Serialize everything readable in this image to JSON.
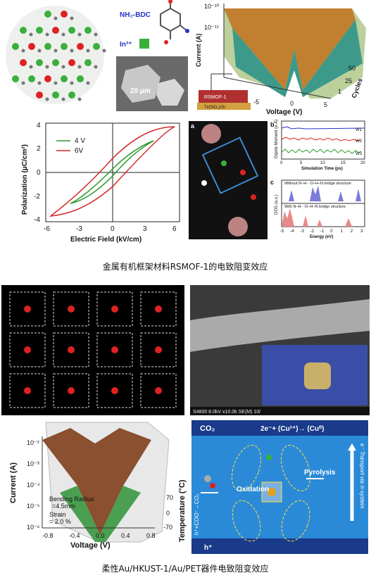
{
  "top": {
    "mof": {
      "ligand": "NH₂-BDC",
      "ion": "In³⁺",
      "scale": "20 μm"
    },
    "surface": {
      "y_ticks": [
        "10⁻¹⁰",
        "10⁻¹¹"
      ],
      "y_label": "Current (A)",
      "z_label": "Cycles",
      "z_ticks": [
        "50",
        "25",
        "1"
      ],
      "x_label": "Voltage (V)",
      "x_ticks": [
        "-5",
        "0",
        "5"
      ],
      "device": "RSMOF-1",
      "substrate": "Ti/(SiO₂)/Si"
    },
    "hysteresis": {
      "y_label": "Polarization (μC/cm²)",
      "x_label": "Electric Field (kV/cm)",
      "x_ticks": [
        "-6",
        "-3",
        "0",
        "3",
        "6"
      ],
      "y_ticks": [
        "4",
        "2",
        "0",
        "-2",
        "-4"
      ],
      "legend": [
        "4 V",
        "6V"
      ]
    },
    "sim": {
      "panels": [
        "a",
        "b",
        "c"
      ],
      "b_y_label": "Dipole Moment (e·Å)",
      "b_x_label": "Simulation Time (ps)",
      "b_x_ticks": [
        "0",
        "5",
        "10",
        "15",
        "20"
      ],
      "wires": [
        "W1",
        "W2",
        "W3"
      ],
      "c_y_label": "DOS (a.u.)",
      "c_x_label": "Energy (eV)",
      "c_x_ticks": [
        "-5",
        "-4",
        "-3",
        "-2",
        "-1",
        "0",
        "1",
        "2",
        "3"
      ],
      "c_without": "Without N–H···O–H–N bridge structure",
      "c_with": "With N–H···O–H–N bridge structure"
    },
    "caption": "金属有机框架材料RSMOF-1的电致阻变效应"
  },
  "bottom": {
    "sem": "S4800 8.0kV x10.0k SE(M) 10/",
    "surface": {
      "y_label": "Current (A)",
      "y_ticks": [
        "10⁻²",
        "10⁻³",
        "10⁻⁴",
        "10⁻⁵",
        "10⁻⁶"
      ],
      "x_label": "Voltage (V)",
      "x_ticks": [
        "-0.8",
        "-0.4",
        "0.0",
        "0.4",
        "0.8"
      ],
      "z_label": "Temperature (°C)",
      "z_ticks": [
        "70",
        "0",
        "-70"
      ],
      "note": [
        "Bending Radius",
        "=4.5mm",
        "Strain",
        "= 2.0 %"
      ]
    },
    "scheme": {
      "co2": "CO₂",
      "reduction": "2e⁻+ (Cu²⁺)→ (Cu⁰)",
      "oxidation": "Oxidation",
      "pyrolysis": "Pyrolysis",
      "transport": "e⁻ Transport via π-system",
      "left": "h⁺+COO⁻→CO₂",
      "hole": "h⁺"
    },
    "caption": "柔性Au/HKUST-1/Au/PET器件电致阻变效应"
  }
}
